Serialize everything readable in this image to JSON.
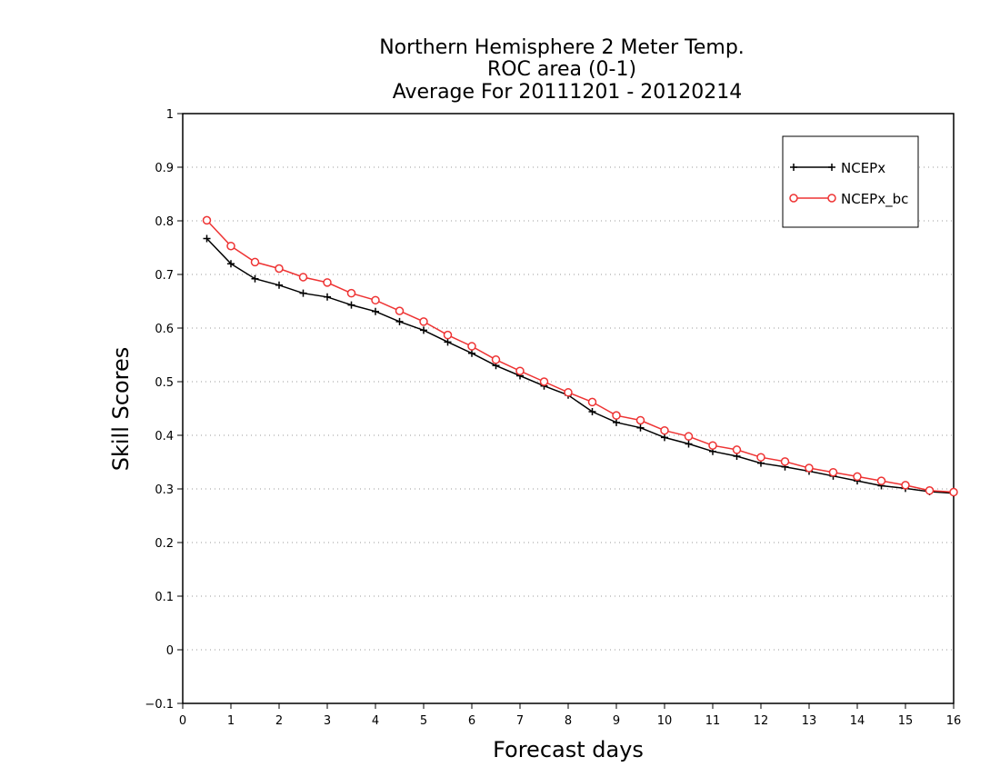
{
  "chart_data": {
    "type": "line",
    "title": [
      "Northern Hemisphere 2 Meter Temp.",
      "ROC area (0-1)",
      "Average For 20111201 - 20120214"
    ],
    "xlabel": "Forecast days",
    "ylabel": "Skill Scores",
    "xlim": [
      0,
      16
    ],
    "ylim": [
      -0.1,
      1
    ],
    "xticks": [
      "0",
      "1",
      "2",
      "3",
      "4",
      "5",
      "6",
      "7",
      "8",
      "9",
      "10",
      "11",
      "12",
      "13",
      "14",
      "15",
      "16"
    ],
    "yticks": [
      "−0.1",
      "0",
      "0.1",
      "0.2",
      "0.3",
      "0.4",
      "0.5",
      "0.6",
      "0.7",
      "0.8",
      "0.9",
      "1"
    ],
    "grid": "horizontal-dotted",
    "legend_position": "top-right",
    "x": [
      0.5,
      1,
      1.5,
      2,
      2.5,
      3,
      3.5,
      4,
      4.5,
      5,
      5.5,
      6,
      6.5,
      7,
      7.5,
      8,
      8.5,
      9,
      9.5,
      10,
      10.5,
      11,
      11.5,
      12,
      12.5,
      13,
      13.5,
      14,
      14.5,
      15,
      15.5,
      16
    ],
    "series": [
      {
        "name": "NCEPx",
        "color": "#000000",
        "marker": "plus",
        "values": [
          0.767,
          0.72,
          0.692,
          0.68,
          0.665,
          0.658,
          0.643,
          0.631,
          0.612,
          0.596,
          0.574,
          0.553,
          0.53,
          0.511,
          0.492,
          0.475,
          0.444,
          0.424,
          0.414,
          0.396,
          0.384,
          0.37,
          0.361,
          0.348,
          0.341,
          0.333,
          0.324,
          0.315,
          0.306,
          0.301,
          0.295,
          0.292
        ]
      },
      {
        "name": "NCEPx_bc",
        "color": "#ee3333",
        "marker": "circle",
        "values": [
          0.801,
          0.753,
          0.723,
          0.711,
          0.695,
          0.685,
          0.665,
          0.652,
          0.632,
          0.612,
          0.587,
          0.566,
          0.541,
          0.52,
          0.5,
          0.48,
          0.462,
          0.437,
          0.428,
          0.409,
          0.398,
          0.381,
          0.373,
          0.359,
          0.351,
          0.339,
          0.331,
          0.323,
          0.315,
          0.307,
          0.297,
          0.294
        ]
      }
    ]
  }
}
